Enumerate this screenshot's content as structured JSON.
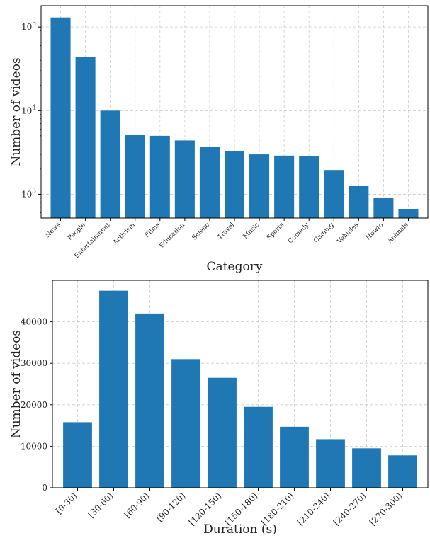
{
  "chart_data": [
    {
      "type": "bar",
      "scale": "log",
      "categories": [
        "News",
        "People",
        "Entertainment",
        "Activism",
        "Films",
        "Education",
        "Scienc",
        "Travel",
        "Music",
        "Sports",
        "Comedy",
        "Gaming",
        "Vehicles",
        "Howto",
        "Animals"
      ],
      "values": [
        130000,
        44000,
        10000,
        5100,
        5000,
        4400,
        3700,
        3300,
        3000,
        2900,
        2850,
        1950,
        1250,
        900,
        670
      ],
      "xlabel": "Category",
      "ylabel": "Number of videos",
      "ylim": [
        520,
        180000
      ],
      "yticks": [
        1000,
        10000,
        100000
      ],
      "ytick_labels": [
        {
          "base": "10",
          "exp": "3"
        },
        {
          "base": "10",
          "exp": "4"
        },
        {
          "base": "10",
          "exp": "5"
        }
      ],
      "grid": true,
      "color": "#1f77b4"
    },
    {
      "type": "bar",
      "scale": "linear",
      "categories": [
        "[0-30)",
        "[30-60)",
        "[60-90)",
        "[90-120)",
        "[120-150)",
        "[150-180)",
        "[180-210)",
        "[210-240)",
        "[240-270)",
        "[270-300)"
      ],
      "values": [
        15800,
        47500,
        42000,
        31000,
        26500,
        19500,
        14700,
        11700,
        9500,
        7800
      ],
      "xlabel": "Duration (s)",
      "ylabel": "Number of videos",
      "ylim": [
        0,
        50000
      ],
      "yticks": [
        0,
        10000,
        20000,
        30000,
        40000
      ],
      "ytick_labels": [
        "0",
        "10000",
        "20000",
        "30000",
        "40000"
      ],
      "grid": true,
      "color": "#1f77b4"
    }
  ]
}
